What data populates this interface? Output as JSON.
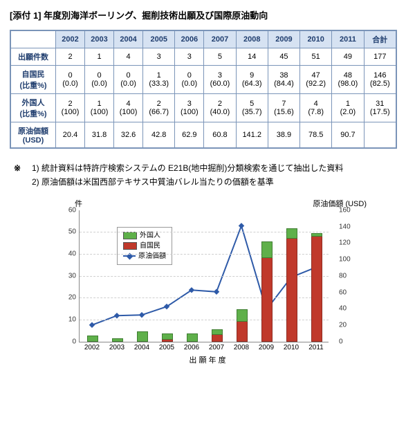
{
  "title": "[添付 1] 年度別海洋ボーリング、掘削技術出願及び国際原油動向",
  "table": {
    "years": [
      "2002",
      "2003",
      "2004",
      "2005",
      "2006",
      "2007",
      "2008",
      "2009",
      "2010",
      "2011"
    ],
    "total_header": "合計",
    "rows": [
      {
        "label": "出願件数",
        "cells": [
          "2",
          "1",
          "4",
          "3",
          "3",
          "5",
          "14",
          "45",
          "51",
          "49",
          "177"
        ]
      },
      {
        "label": "自国民\n(比重%)",
        "cells": [
          "0\n(0.0)",
          "0\n(0.0)",
          "0\n(0.0)",
          "1\n(33.3)",
          "0\n(0.0)",
          "3\n(60.0)",
          "9\n(64.3)",
          "38\n(84.4)",
          "47\n(92.2)",
          "48\n(98.0)",
          "146\n(82.5)"
        ]
      },
      {
        "label": "外国人\n(比重%)",
        "cells": [
          "2\n(100)",
          "1\n(100)",
          "4\n(100)",
          "2\n(66.7)",
          "3\n(100)",
          "2\n(40.0)",
          "5\n(35.7)",
          "7\n(15.6)",
          "4\n(7.8)",
          "1\n(2.0)",
          "31\n(17.5)"
        ]
      },
      {
        "label": "原油価額\n(USD)",
        "cells": [
          "20.4",
          "31.8",
          "32.6",
          "42.8",
          "62.9",
          "60.8",
          "141.2",
          "38.9",
          "78.5",
          "90.7",
          ""
        ]
      }
    ]
  },
  "notes": {
    "mark": "※",
    "items": [
      "1) 統計資料は特許庁検索システムの E21B(地中掘削)分類検索を通じて抽出した資料",
      "2) 原油価額は米国西部テキサス中質油バレル当たりの価額を基準"
    ]
  },
  "chart": {
    "left_axis_title": "件",
    "right_axis_title": "原油価額  (USD)",
    "x_axis_title": "出 願 年 度",
    "categories": [
      "2002",
      "2003",
      "2004",
      "2005",
      "2006",
      "2007",
      "2008",
      "2009",
      "2010",
      "2011"
    ],
    "domestic": [
      0,
      0,
      0,
      1,
      0,
      3,
      9,
      38,
      47,
      48
    ],
    "foreign": [
      2,
      1,
      4,
      2,
      3,
      2,
      5,
      7,
      4,
      1
    ],
    "oil": [
      20.4,
      31.8,
      32.6,
      42.8,
      62.9,
      60.8,
      141.2,
      38.9,
      78.5,
      90.7
    ],
    "y_left_max": 60,
    "y_left_step": 10,
    "y_right_max": 160,
    "y_right_step": 20,
    "legend": {
      "foreign": "外国人",
      "domestic": "自国民",
      "oil": "原油価額"
    },
    "colors": {
      "domestic": "#c0392b",
      "foreign": "#5fb04a",
      "oil": "#2e5aa8",
      "grid": "#cfcfcf"
    }
  }
}
